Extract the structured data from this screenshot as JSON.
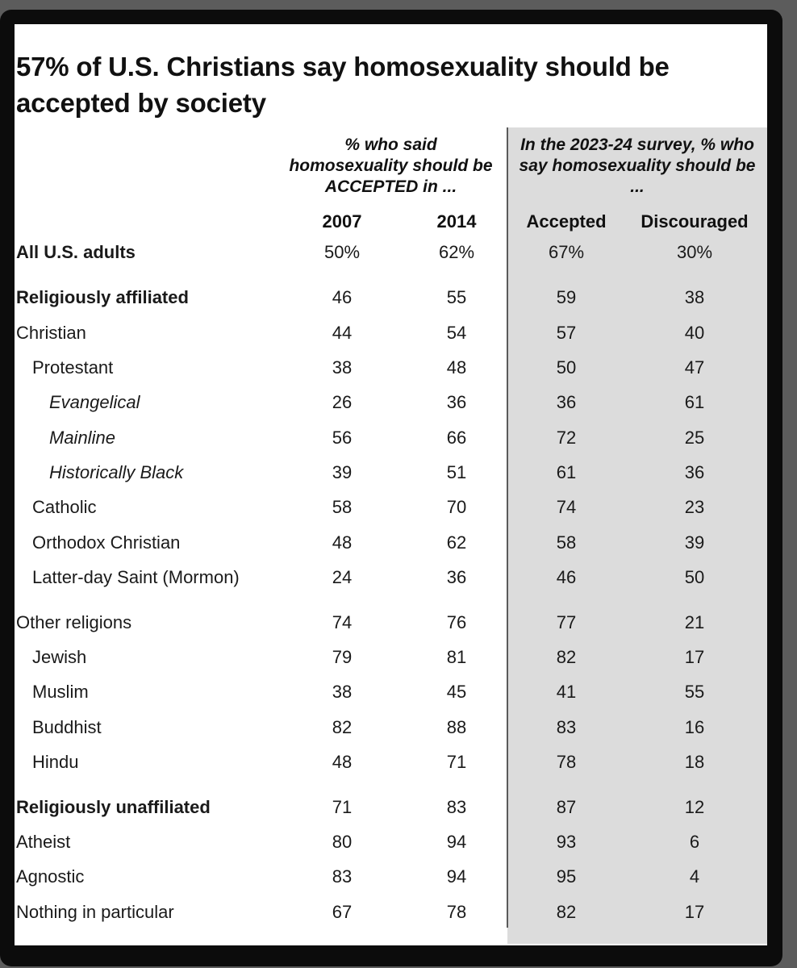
{
  "chart_data": {
    "type": "table",
    "title": "57% of U.S. Christians say homosexuality should be accepted by society",
    "group_headers": {
      "past": "% who said homosexuality should be ACCEPTED in ...",
      "current": "In the 2023-24 survey, % who say homosexuality should be ..."
    },
    "columns": [
      "2007",
      "2014",
      "Accepted",
      "Discouraged"
    ],
    "rows": [
      {
        "label": "All U.S. adults",
        "values": [
          "50%",
          "62%",
          "67%",
          "30%"
        ]
      },
      {
        "label": "Religiously affiliated",
        "values": [
          "46",
          "55",
          "59",
          "38"
        ]
      },
      {
        "label": "Christian",
        "values": [
          "44",
          "54",
          "57",
          "40"
        ]
      },
      {
        "label": "Protestant",
        "values": [
          "38",
          "48",
          "50",
          "47"
        ]
      },
      {
        "label": "Evangelical",
        "values": [
          "26",
          "36",
          "36",
          "61"
        ]
      },
      {
        "label": "Mainline",
        "values": [
          "56",
          "66",
          "72",
          "25"
        ]
      },
      {
        "label": "Historically Black",
        "values": [
          "39",
          "51",
          "61",
          "36"
        ]
      },
      {
        "label": "Catholic",
        "values": [
          "58",
          "70",
          "74",
          "23"
        ]
      },
      {
        "label": "Orthodox Christian",
        "values": [
          "48",
          "62",
          "58",
          "39"
        ]
      },
      {
        "label": "Latter-day Saint (Mormon)",
        "values": [
          "24",
          "36",
          "46",
          "50"
        ]
      },
      {
        "label": "Other religions",
        "values": [
          "74",
          "76",
          "77",
          "21"
        ]
      },
      {
        "label": "Jewish",
        "values": [
          "79",
          "81",
          "82",
          "17"
        ]
      },
      {
        "label": "Muslim",
        "values": [
          "38",
          "45",
          "41",
          "55"
        ]
      },
      {
        "label": "Buddhist",
        "values": [
          "82",
          "88",
          "83",
          "16"
        ]
      },
      {
        "label": "Hindu",
        "values": [
          "48",
          "71",
          "78",
          "18"
        ]
      },
      {
        "label": "Religiously unaffiliated",
        "values": [
          "71",
          "83",
          "87",
          "12"
        ]
      },
      {
        "label": "Atheist",
        "values": [
          "80",
          "94",
          "93",
          "6"
        ]
      },
      {
        "label": "Agnostic",
        "values": [
          "83",
          "94",
          "95",
          "4"
        ]
      },
      {
        "label": "Nothing in particular",
        "values": [
          "67",
          "78",
          "82",
          "17"
        ]
      }
    ]
  }
}
